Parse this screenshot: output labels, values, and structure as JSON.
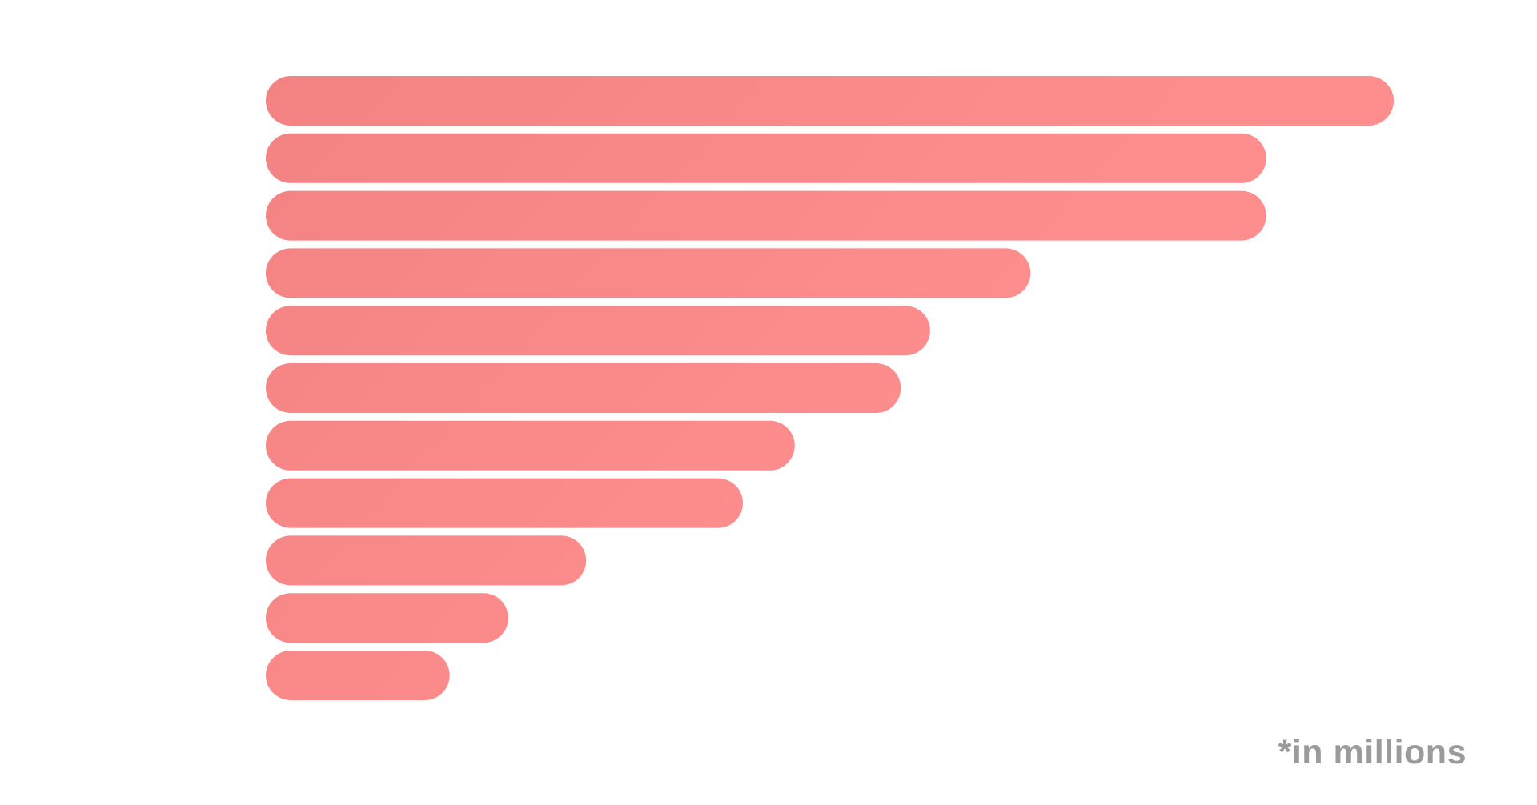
{
  "chart_data": {
    "type": "bar",
    "orientation": "horizontal",
    "values": [
      100,
      88.7,
      88.7,
      67.8,
      58.9,
      56.3,
      46.9,
      42.3,
      28.4,
      21.5,
      16.3
    ],
    "xlim": [
      0,
      100
    ],
    "title": "",
    "xlabel": "",
    "ylabel": "",
    "grid": false,
    "legend": "none",
    "bar_color_start": "#f38383",
    "bar_color_end": "#fe8e8e"
  },
  "footnote": "*in millions"
}
